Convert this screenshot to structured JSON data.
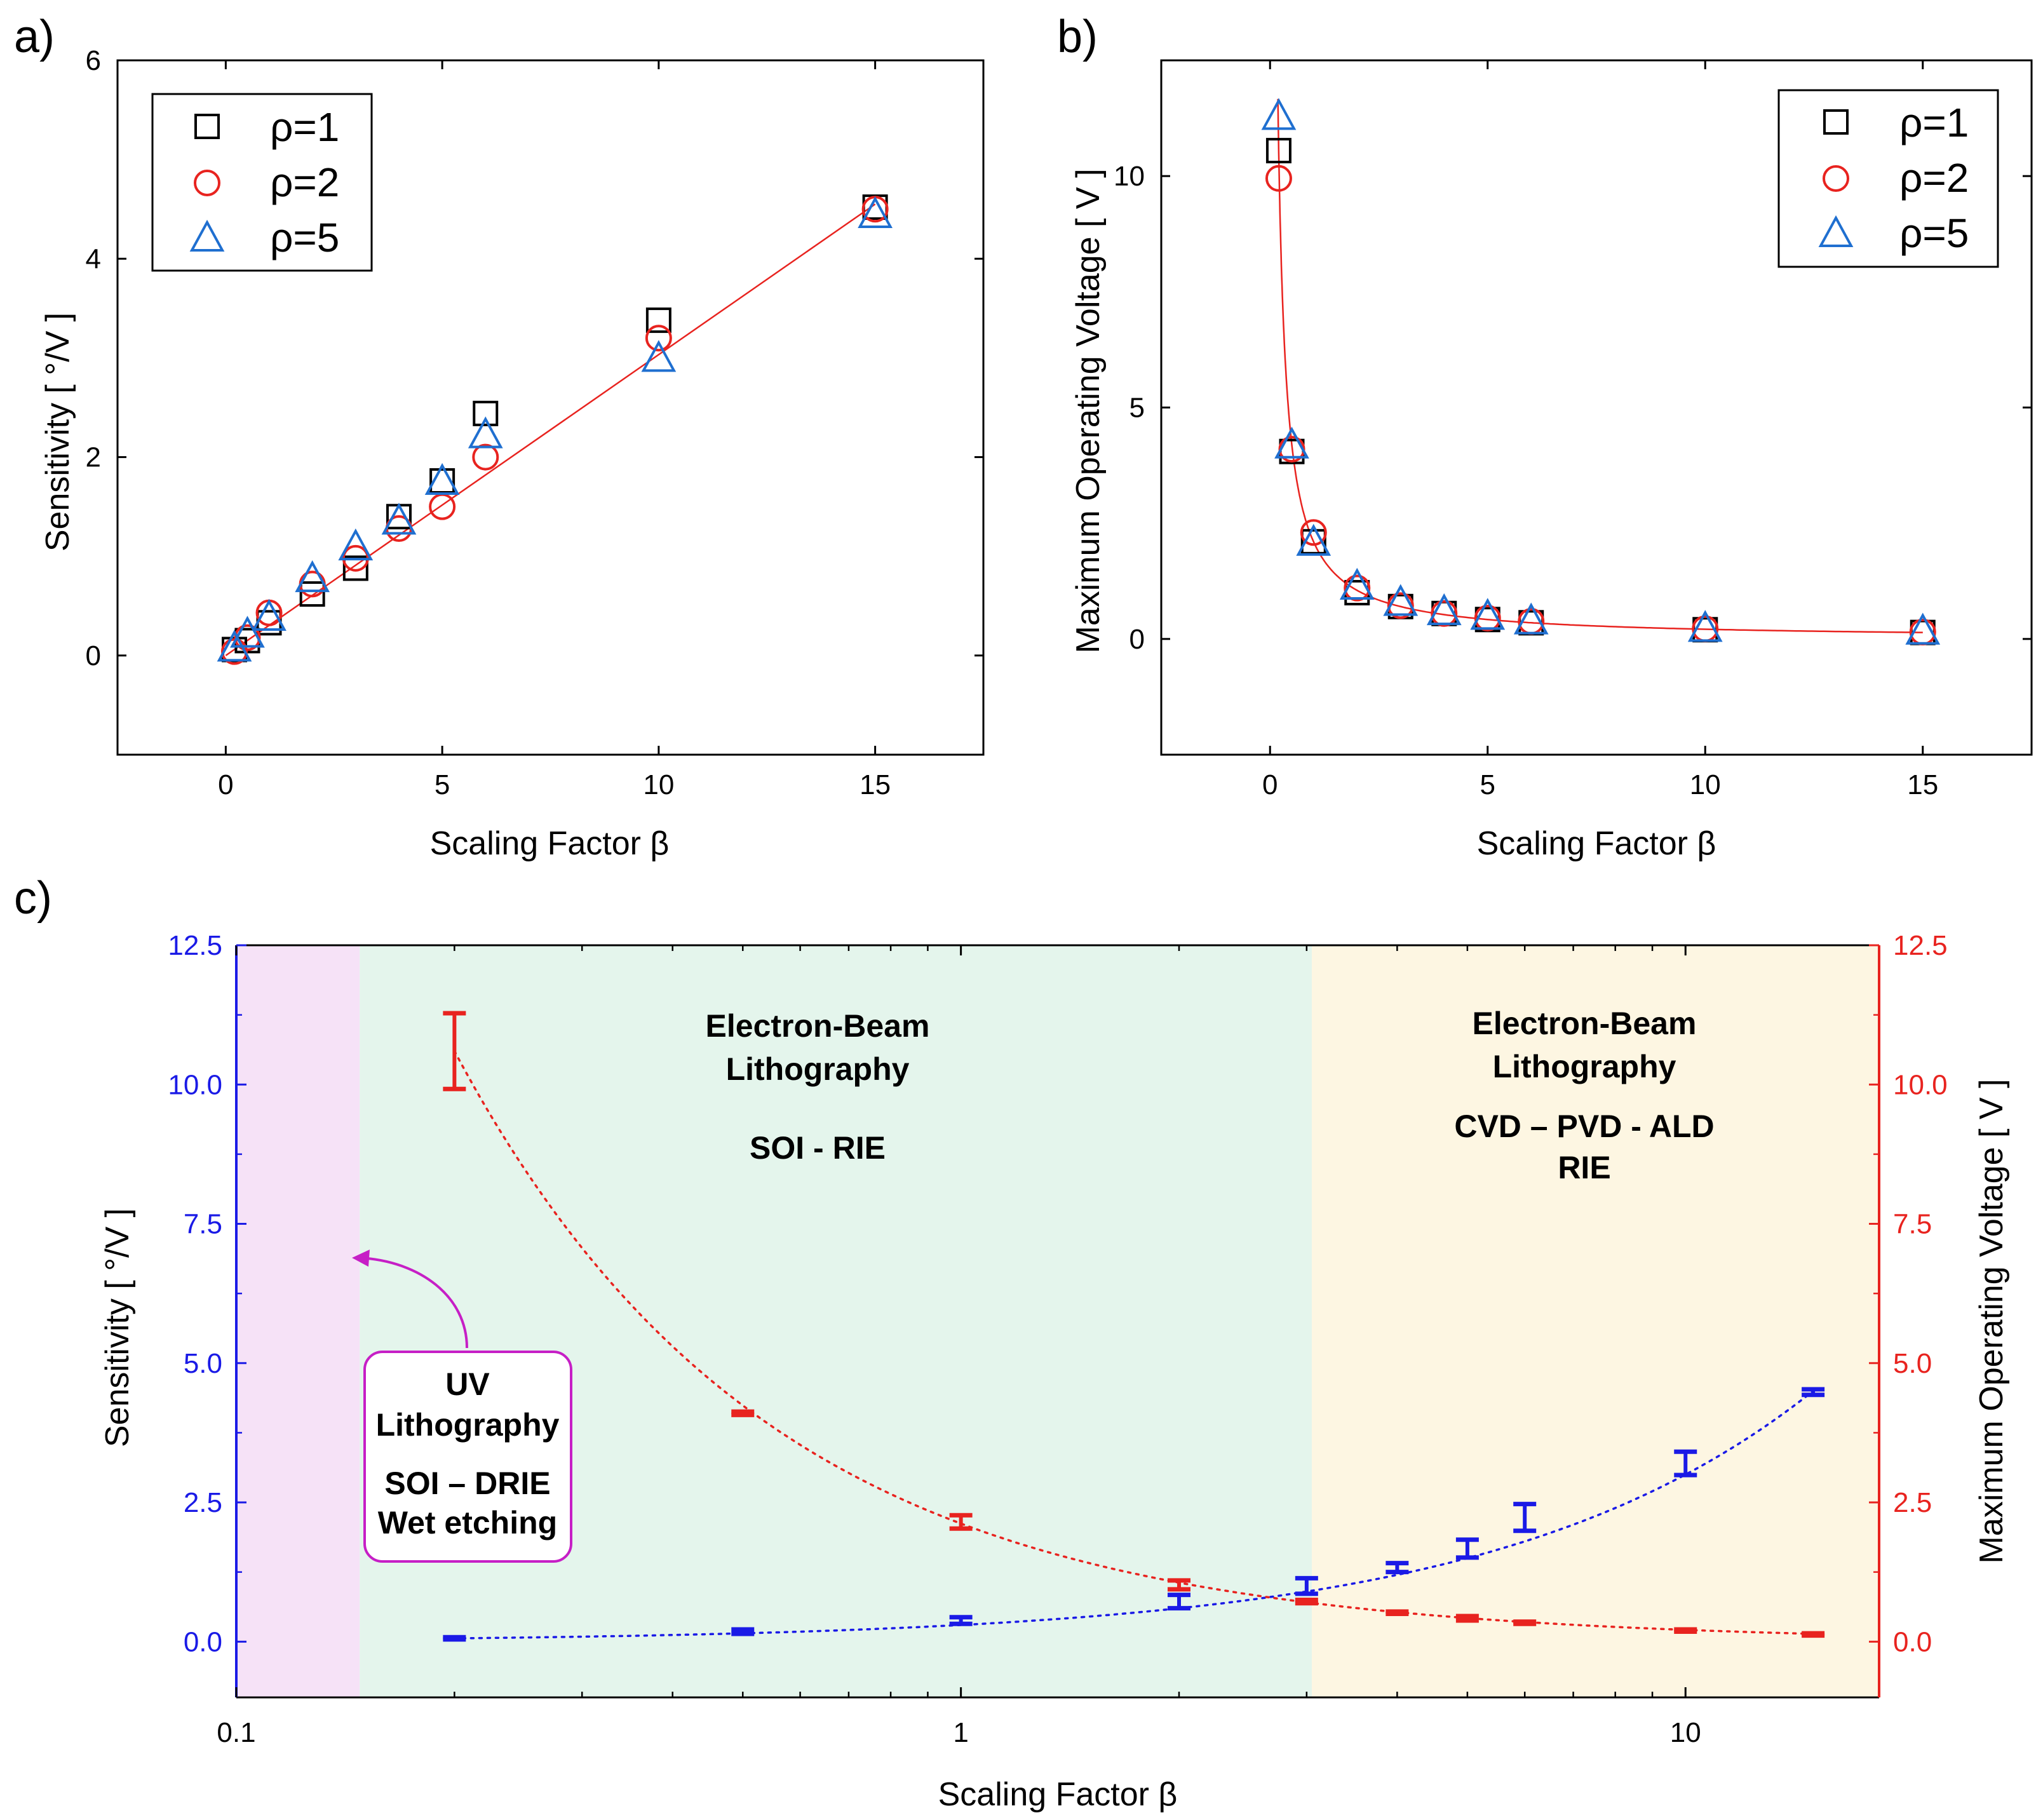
{
  "figure": {
    "colors": {
      "black": "#000000",
      "red": "#e8231f",
      "blue": "#1f6fd0",
      "dark_blue": "#1a1ae6",
      "pink": "#f6e2f7",
      "green": "#e4f5ec",
      "yellow": "#fdf6e2",
      "magenta": "#c61fc6"
    }
  },
  "chart_data": [
    {
      "panel_label": "a)",
      "type": "scatter",
      "xlabel": "Scaling Factor β",
      "ylabel": "Sensitivity [ °/V ]",
      "xlim": [
        -2.5,
        17.5
      ],
      "ylim": [
        -1,
        6
      ],
      "xticks": [
        "0",
        "5",
        "10",
        "15"
      ],
      "xtick_values": [
        0,
        5,
        10,
        15
      ],
      "yticks": [
        "0",
        "2",
        "4",
        "6"
      ],
      "ytick_values": [
        0,
        2,
        4,
        6
      ],
      "series": [
        {
          "name": "ρ=1",
          "marker": "square",
          "color": "#000000",
          "x": [
            0.2,
            0.5,
            1,
            2,
            3,
            4,
            5,
            6,
            10,
            15
          ],
          "y": [
            0.06,
            0.15,
            0.33,
            0.62,
            0.88,
            1.4,
            1.76,
            2.44,
            3.38,
            4.52
          ]
        },
        {
          "name": "ρ=2",
          "marker": "circle",
          "color": "#e8231f",
          "x": [
            0.2,
            0.5,
            1,
            2,
            3,
            4,
            5,
            6,
            10,
            15
          ],
          "y": [
            0.04,
            0.18,
            0.43,
            0.72,
            0.98,
            1.28,
            1.5,
            2.0,
            3.2,
            4.5
          ]
        },
        {
          "name": "ρ=5",
          "marker": "triangle",
          "color": "#1f6fd0",
          "x": [
            0.2,
            0.5,
            1,
            2,
            3,
            4,
            5,
            6,
            10,
            15
          ],
          "y": [
            0.08,
            0.22,
            0.39,
            0.78,
            1.1,
            1.36,
            1.76,
            2.23,
            3.0,
            4.45
          ]
        }
      ],
      "fit": {
        "color": "#e8231f",
        "x": [
          0,
          15
        ],
        "y": [
          0,
          4.55
        ]
      }
    },
    {
      "panel_label": "b)",
      "type": "scatter",
      "xlabel": "Scaling Factor β",
      "ylabel": "Maximum Operating Voltage [ V ]",
      "xlim": [
        -2.5,
        17.5
      ],
      "ylim": [
        -2.5,
        12.5
      ],
      "xticks": [
        "0",
        "5",
        "10",
        "15"
      ],
      "xtick_values": [
        0,
        5,
        10,
        15
      ],
      "yticks": [
        "0",
        "5",
        "10"
      ],
      "ytick_values": [
        0,
        5,
        10
      ],
      "series": [
        {
          "name": "ρ=1",
          "marker": "square",
          "color": "#000000",
          "x": [
            0.2,
            0.5,
            1,
            2,
            3,
            4,
            5,
            6,
            10,
            15
          ],
          "y": [
            10.55,
            4.05,
            2.1,
            1.0,
            0.7,
            0.55,
            0.42,
            0.35,
            0.2,
            0.14
          ]
        },
        {
          "name": "ρ=2",
          "marker": "circle",
          "color": "#e8231f",
          "x": [
            0.2,
            0.5,
            1,
            2,
            3,
            4,
            5,
            6,
            10,
            15
          ],
          "y": [
            9.95,
            4.1,
            2.3,
            1.1,
            0.72,
            0.55,
            0.45,
            0.38,
            0.22,
            0.15
          ]
        },
        {
          "name": "ρ=5",
          "marker": "triangle",
          "color": "#1f6fd0",
          "x": [
            0.2,
            0.5,
            1,
            2,
            3,
            4,
            5,
            6,
            10,
            15
          ],
          "y": [
            11.3,
            4.2,
            2.1,
            1.15,
            0.8,
            0.6,
            0.5,
            0.4,
            0.24,
            0.18
          ]
        }
      ],
      "fit": {
        "color": "#e8231f",
        "form": "2.1/x"
      }
    },
    {
      "panel_label": "c)",
      "type": "scatter",
      "xscale": "log",
      "xlabel": "Scaling Factor β",
      "ylabel_left": "Sensitivity [ °/V ]",
      "ylabel_right": "Maximum Operating Voltage [ V ]",
      "xlim": [
        0.1,
        18.5
      ],
      "ylim": [
        -1,
        12.5
      ],
      "xticks": [
        "0.1",
        "1",
        "10"
      ],
      "xtick_values": [
        0.1,
        1,
        10
      ],
      "yticks_left": [
        "0.0",
        "2.5",
        "5.0",
        "7.5",
        "10.0",
        "12.5"
      ],
      "yticks_right": [
        "0.0",
        "2.5",
        "5.0",
        "7.5",
        "10.0",
        "12.5"
      ],
      "ytick_values": [
        0,
        2.5,
        5,
        7.5,
        10,
        12.5
      ],
      "regions": [
        {
          "x0": 0.1,
          "x1": 0.148,
          "color": "#f6e2f7"
        },
        {
          "x0": 0.148,
          "x1": 3.05,
          "color": "#e4f5ec",
          "lines": [
            "Electron-Beam",
            "Lithography",
            "",
            "SOI - RIE"
          ]
        },
        {
          "x0": 3.05,
          "x1": 18.5,
          "color": "#fdf6e2",
          "lines": [
            "Electron-Beam",
            "Lithography",
            "",
            "CVD – PVD - ALD",
            "RIE"
          ]
        }
      ],
      "annotation": {
        "lines": [
          "UV",
          "Lithography",
          "",
          "SOI – DRIE",
          "Wet etching"
        ],
        "arrow_to": [
          0.148,
          6.7
        ]
      },
      "series": [
        {
          "name": "Sensitivity",
          "axis": "left",
          "color": "#1a1ae6",
          "x": [
            0.2,
            0.5,
            1,
            2,
            3,
            4,
            5,
            6,
            10,
            15
          ],
          "y": [
            0.06,
            0.18,
            0.38,
            0.72,
            1.0,
            1.33,
            1.67,
            2.23,
            3.2,
            4.48
          ],
          "err": [
            0.02,
            0.04,
            0.06,
            0.12,
            0.14,
            0.08,
            0.16,
            0.24,
            0.21,
            0.05
          ]
        },
        {
          "name": "Maximum Operating Voltage",
          "axis": "right",
          "color": "#e8231f",
          "x": [
            0.2,
            0.5,
            1,
            2,
            3,
            4,
            5,
            6,
            10,
            15
          ],
          "y": [
            10.6,
            4.1,
            2.15,
            1.02,
            0.72,
            0.52,
            0.42,
            0.34,
            0.2,
            0.13
          ],
          "err": [
            0.68,
            0.03,
            0.12,
            0.08,
            0.03,
            0.02,
            0.04,
            0.02,
            0.02,
            0.02
          ]
        }
      ]
    }
  ]
}
